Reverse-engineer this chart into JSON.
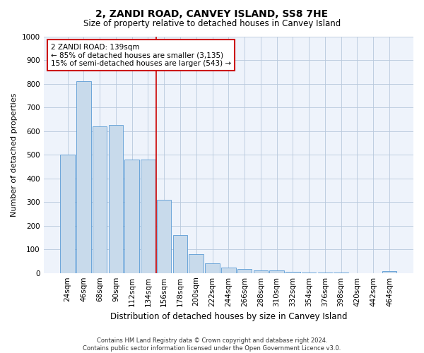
{
  "title": "2, ZANDI ROAD, CANVEY ISLAND, SS8 7HE",
  "subtitle": "Size of property relative to detached houses in Canvey Island",
  "xlabel": "Distribution of detached houses by size in Canvey Island",
  "ylabel": "Number of detached properties",
  "footer_line1": "Contains HM Land Registry data © Crown copyright and database right 2024.",
  "footer_line2": "Contains public sector information licensed under the Open Government Licence v3.0.",
  "bar_color": "#c8daeb",
  "bar_edge_color": "#5b9bd5",
  "vline_color": "#cc0000",
  "annotation_text": "2 ZANDI ROAD: 139sqm\n← 85% of detached houses are smaller (3,135)\n15% of semi-detached houses are larger (543) →",
  "annotation_box_color": "#ffffff",
  "annotation_border_color": "#cc0000",
  "categories": [
    "24sqm",
    "46sqm",
    "68sqm",
    "90sqm",
    "112sqm",
    "134sqm",
    "156sqm",
    "178sqm",
    "200sqm",
    "222sqm",
    "244sqm",
    "266sqm",
    "288sqm",
    "310sqm",
    "332sqm",
    "354sqm",
    "376sqm",
    "398sqm",
    "420sqm",
    "442sqm",
    "464sqm"
  ],
  "values": [
    500,
    810,
    620,
    625,
    480,
    480,
    310,
    160,
    80,
    42,
    22,
    18,
    10,
    10,
    5,
    2,
    1,
    1,
    0,
    0,
    8
  ],
  "ylim": [
    0,
    1000
  ],
  "yticks": [
    0,
    100,
    200,
    300,
    400,
    500,
    600,
    700,
    800,
    900,
    1000
  ],
  "background_color": "#eef3fb",
  "grid_color": "#b8c8dc",
  "title_fontsize": 10,
  "subtitle_fontsize": 8.5,
  "xlabel_fontsize": 8.5,
  "ylabel_fontsize": 8,
  "tick_fontsize": 7.5,
  "annot_fontsize": 7.5,
  "footer_fontsize": 6
}
